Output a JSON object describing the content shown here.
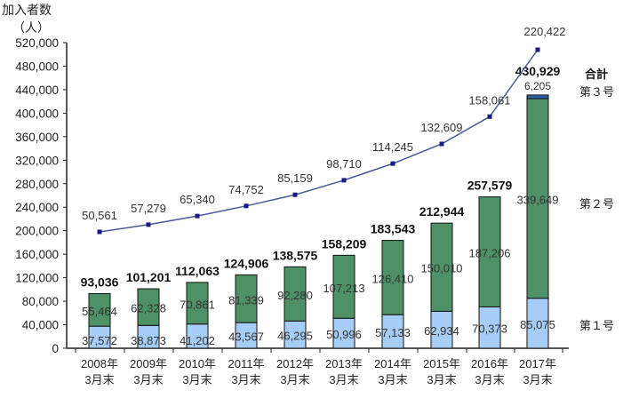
{
  "chart_data": {
    "type": "bar",
    "stacked": true,
    "ylabel": "加入者数\n（人）",
    "ylim": [
      0,
      520000
    ],
    "yticks": [
      "0",
      "40,000",
      "80,000",
      "120,000",
      "160,000",
      "200,000",
      "240,000",
      "280,000",
      "320,000",
      "360,000",
      "400,000",
      "440,000",
      "480,000",
      "520,000"
    ],
    "categories": [
      "2008年\n3月末",
      "2009年\n3月末",
      "2010年\n3月末",
      "2011年\n3月末",
      "2012年\n3月末",
      "2013年\n3月末",
      "2014年\n3月末",
      "2015年\n3月末",
      "2016年\n3月末",
      "2017年\n3月末"
    ],
    "series": [
      {
        "name": "第１号",
        "color": "#a6cdf5",
        "values": [
          37572,
          38873,
          41202,
          43567,
          46295,
          50996,
          57133,
          62934,
          70373,
          85075
        ],
        "labels": [
          "37,572",
          "38,873",
          "41,202",
          "43,567",
          "46,295",
          "50,996",
          "57,133",
          "62,934",
          "70,373",
          "85,075"
        ]
      },
      {
        "name": "第２号",
        "color": "#4e9166",
        "values": [
          55464,
          62328,
          70861,
          81339,
          92280,
          107213,
          126410,
          150010,
          187206,
          339649
        ],
        "labels": [
          "55,464",
          "62,328",
          "70,861",
          "81,339",
          "92,280",
          "107,213",
          "126,410",
          "150,010",
          "187,206",
          "339,649"
        ]
      },
      {
        "name": "第３号",
        "color": "#2f5ea8",
        "values": [
          0,
          0,
          0,
          0,
          0,
          0,
          0,
          0,
          0,
          6205
        ],
        "labels": [
          "",
          "",
          "",
          "",
          "",
          "",
          "",
          "",
          "",
          "6,205"
        ]
      }
    ],
    "totals": {
      "name": "合計",
      "values": [
        93036,
        101201,
        112063,
        124906,
        138575,
        158209,
        183543,
        212944,
        257579,
        430929
      ],
      "labels": [
        "93,036",
        "101,201",
        "112,063",
        "124,906",
        "138,575",
        "158,209",
        "183,543",
        "212,944",
        "257,579",
        "430,929"
      ]
    },
    "line": {
      "color": "#4a5a9a",
      "values": [
        50561,
        57279,
        65340,
        74752,
        85159,
        98710,
        114245,
        132609,
        158061,
        220422
      ],
      "labels": [
        "50,561",
        "57,279",
        "65,340",
        "74,752",
        "85,159",
        "98,710",
        "114,245",
        "132,609",
        "158,061",
        "220,422"
      ]
    },
    "grid": false,
    "legend": "right"
  }
}
